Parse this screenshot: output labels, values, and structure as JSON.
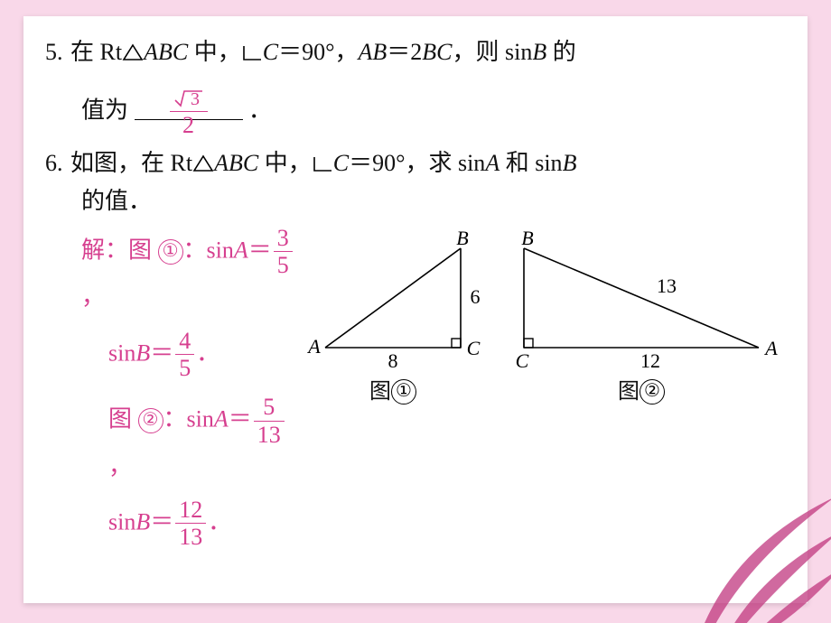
{
  "background_color": "#f9d8e9",
  "card_color": "#ffffff",
  "text_color": "#111111",
  "accent_color": "#d63f8f",
  "body_font": "SimSun",
  "italic_font": "Times New Roman",
  "base_fontsize": 26,
  "q5": {
    "num": "5.",
    "pre": "在 ",
    "rt": "Rt",
    "tri": "ABC",
    "mid1": " 中，",
    "ang": "C",
    "eq90": "＝90°，",
    "ab": "AB",
    "eq": "＝",
    "two": "2",
    "bc": "BC",
    "mid2": "，则 ",
    "sin": "sin",
    "B": "B",
    "mid3": " 的",
    "l2a": "值为",
    "ans_num": "3",
    "ans_sqrt_label": "√",
    "ans_den": "2",
    "period": "．",
    "blank_width": 120
  },
  "q6": {
    "num": "6.",
    "pre": "如图，在 ",
    "rt": "Rt",
    "tri": "ABC",
    "mid1": " 中，",
    "ang": "C",
    "eq90": "＝90°，求 ",
    "sin": "sin",
    "A": "A",
    "and": " 和 ",
    "B": "B",
    "l2": "的值．",
    "sol": {
      "head": "解：",
      "fig_word": "图 ",
      "c1": "①",
      "c2": "②",
      "colon": "：",
      "sin": "sin",
      "A": "A",
      "B": "B",
      "eq": "＝",
      "comma": "，",
      "period": "．",
      "f1": {
        "n": "3",
        "d": "5"
      },
      "f2": {
        "n": "4",
        "d": "5"
      },
      "f3": {
        "n": "5",
        "d": "13"
      },
      "f4": {
        "n": "12",
        "d": "13"
      }
    }
  },
  "diagrams": {
    "stroke": "#000000",
    "stroke_width": 1.6,
    "label_fontsize": 22,
    "fig1": {
      "A": [
        0,
        110
      ],
      "C": [
        150,
        110
      ],
      "B": [
        150,
        0
      ],
      "lblA": "A",
      "lblB": "B",
      "lblC": "C",
      "side_AC": "8",
      "side_BC": "6",
      "sq": 10,
      "caption": "图①"
    },
    "fig2": {
      "C": [
        0,
        110
      ],
      "A": [
        260,
        110
      ],
      "B": [
        0,
        0
      ],
      "lblA": "A",
      "lblB": "B",
      "lblC": "C",
      "side_CA": "12",
      "side_BA": "13",
      "sq": 10,
      "caption": "图②"
    }
  }
}
